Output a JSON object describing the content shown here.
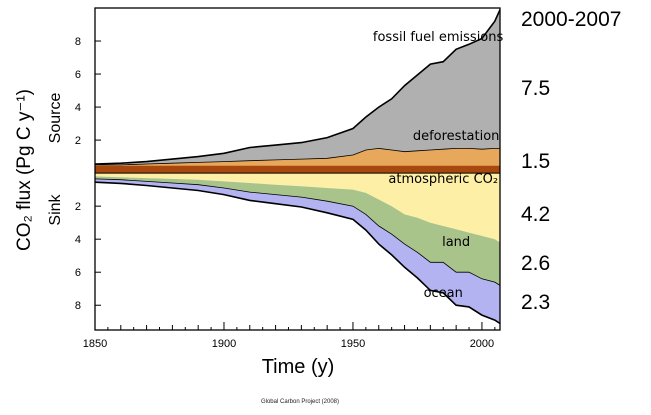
{
  "chart_data": {
    "type": "area",
    "title": "",
    "xlabel": "Time (y)",
    "ylabel_main": "CO₂ flux (Pg C y⁻¹)",
    "ylabel_source": "Source",
    "ylabel_sink": "Sink",
    "xlim": [
      1850,
      2007
    ],
    "ylim": [
      -9.5,
      10
    ],
    "x_ticks": [
      1850,
      1900,
      1950,
      2000
    ],
    "y_ticks_source": [
      "2",
      "4",
      "6",
      "8"
    ],
    "y_ticks_sink": [
      "2",
      "4",
      "6",
      "8"
    ],
    "grid": false,
    "x": [
      1850,
      1860,
      1870,
      1880,
      1890,
      1900,
      1910,
      1920,
      1930,
      1940,
      1950,
      1955,
      1960,
      1965,
      1970,
      1975,
      1980,
      1985,
      1990,
      1995,
      2000,
      2005,
      2007
    ],
    "series": [
      {
        "name": "fossil fuel emissions",
        "color": "#b0b0b0",
        "values": [
          0.05,
          0.1,
          0.15,
          0.25,
          0.35,
          0.5,
          0.8,
          0.9,
          1.0,
          1.25,
          1.6,
          2.0,
          2.5,
          3.1,
          4.0,
          4.6,
          5.2,
          5.3,
          6.0,
          6.3,
          6.7,
          7.7,
          8.4
        ]
      },
      {
        "name": "deforestation",
        "color": "#e8a85c",
        "values": [
          0.5,
          0.5,
          0.55,
          0.6,
          0.65,
          0.7,
          0.75,
          0.8,
          0.85,
          0.9,
          1.1,
          1.4,
          1.5,
          1.4,
          1.3,
          1.35,
          1.4,
          1.45,
          1.5,
          1.5,
          1.45,
          1.5,
          1.5
        ]
      },
      {
        "name": "atmospheric CO₂",
        "color": "#fdf0a6",
        "values": [
          0.2,
          0.25,
          0.3,
          0.35,
          0.4,
          0.5,
          0.6,
          0.7,
          0.8,
          0.9,
          1.0,
          1.2,
          1.6,
          2.0,
          2.5,
          2.7,
          3.0,
          3.2,
          3.4,
          3.6,
          3.8,
          4.0,
          4.2
        ]
      },
      {
        "name": "land",
        "color": "#a9c48a",
        "values": [
          0.15,
          0.15,
          0.2,
          0.25,
          0.3,
          0.4,
          0.55,
          0.6,
          0.65,
          0.8,
          1.0,
          1.3,
          1.6,
          1.7,
          1.8,
          2.1,
          2.4,
          2.2,
          2.6,
          2.4,
          2.6,
          2.6,
          2.6
        ]
      },
      {
        "name": "ocean",
        "color": "#b3b3f2",
        "values": [
          0.2,
          0.22,
          0.25,
          0.3,
          0.35,
          0.4,
          0.5,
          0.55,
          0.6,
          0.7,
          0.8,
          0.95,
          1.1,
          1.25,
          1.4,
          1.55,
          1.7,
          1.85,
          2.0,
          2.1,
          2.2,
          2.3,
          2.3
        ]
      }
    ],
    "annotations": [
      "fossil fuel emissions",
      "deforestation",
      "atmospheric CO₂",
      "land",
      "ocean"
    ],
    "period_label": "2000-2007",
    "period_values": [
      "7.5",
      "1.5",
      "4.2",
      "2.6",
      "2.3"
    ]
  },
  "footer": "Global Carbon Project (2008)"
}
